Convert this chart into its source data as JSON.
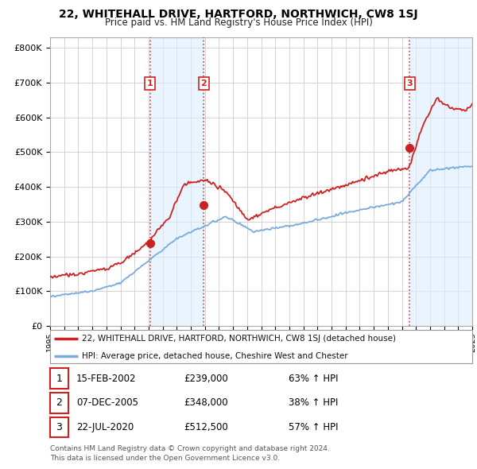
{
  "title": "22, WHITEHALL DRIVE, HARTFORD, NORTHWICH, CW8 1SJ",
  "subtitle": "Price paid vs. HM Land Registry's House Price Index (HPI)",
  "ylim": [
    0,
    830000
  ],
  "yticks": [
    0,
    100000,
    200000,
    300000,
    400000,
    500000,
    600000,
    700000,
    800000
  ],
  "ytick_labels": [
    "£0",
    "£100K",
    "£200K",
    "£300K",
    "£400K",
    "£500K",
    "£600K",
    "£700K",
    "£800K"
  ],
  "x_start_year": 1995,
  "x_end_year": 2025,
  "sale_color": "#cc2222",
  "hpi_color": "#7aaadd",
  "shade_color": "#ddeeff",
  "sale_points": [
    {
      "year": 2002.1,
      "price": 239000,
      "label": "1"
    },
    {
      "year": 2005.93,
      "price": 348000,
      "label": "2"
    },
    {
      "year": 2020.55,
      "price": 512500,
      "label": "3"
    }
  ],
  "vline_color": "#cc4444",
  "legend_sale_label": "22, WHITEHALL DRIVE, HARTFORD, NORTHWICH, CW8 1SJ (detached house)",
  "legend_hpi_label": "HPI: Average price, detached house, Cheshire West and Chester",
  "table_rows": [
    {
      "num": "1",
      "date": "15-FEB-2002",
      "price": "£239,000",
      "change": "63% ↑ HPI"
    },
    {
      "num": "2",
      "date": "07-DEC-2005",
      "price": "£348,000",
      "change": "38% ↑ HPI"
    },
    {
      "num": "3",
      "date": "22-JUL-2020",
      "price": "£512,500",
      "change": "57% ↑ HPI"
    }
  ],
  "footer": "Contains HM Land Registry data © Crown copyright and database right 2024.\nThis data is licensed under the Open Government Licence v3.0.",
  "bg_color": "#ffffff",
  "grid_color": "#cccccc"
}
